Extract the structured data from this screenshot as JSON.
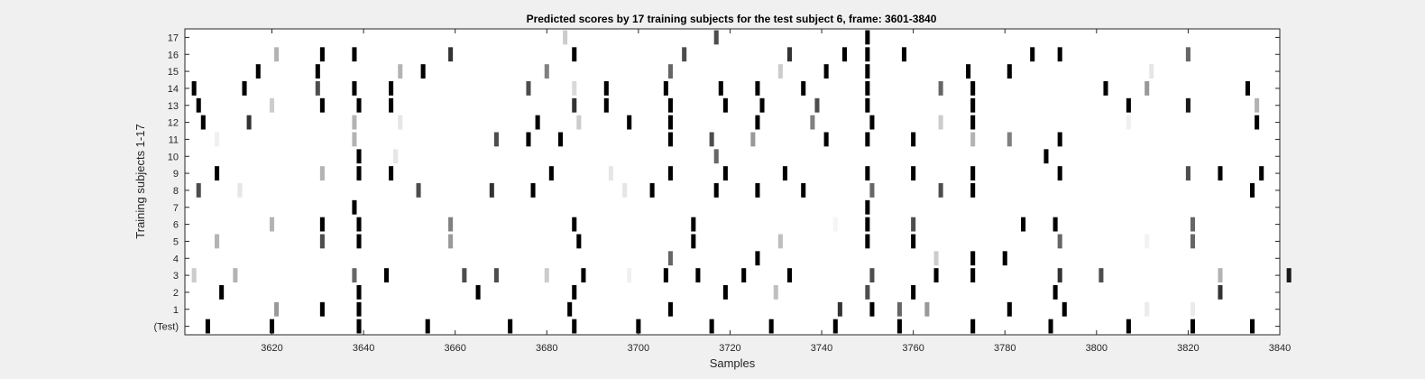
{
  "chart_data": {
    "type": "heatmap",
    "title": "Predicted scores by 17 training subjects for the test subject 6, frame: 3601-3840",
    "xlabel": "Samples",
    "ylabel": "Training subjects 1-17",
    "xlim": [
      3601,
      3840
    ],
    "x_ticks": [
      3620,
      3640,
      3660,
      3680,
      3700,
      3720,
      3740,
      3760,
      3780,
      3800,
      3820,
      3840
    ],
    "rows": [
      "(Test)",
      "1",
      "2",
      "3",
      "4",
      "5",
      "6",
      "7",
      "8",
      "9",
      "10",
      "11",
      "12",
      "13",
      "14",
      "15",
      "16",
      "17"
    ],
    "value_scale": "white = 0, black = 1",
    "series": [
      {
        "row": "(Test)",
        "points": [
          [
            3606,
            1
          ],
          [
            3620,
            1
          ],
          [
            3639,
            1
          ],
          [
            3654,
            1
          ],
          [
            3672,
            1
          ],
          [
            3686,
            1
          ],
          [
            3700,
            1
          ],
          [
            3716,
            1
          ],
          [
            3729,
            1
          ],
          [
            3743,
            1
          ],
          [
            3757,
            1
          ],
          [
            3773,
            1
          ],
          [
            3790,
            1
          ],
          [
            3807,
            1
          ],
          [
            3821,
            1
          ],
          [
            3834,
            1
          ]
        ]
      },
      {
        "row": "1",
        "points": [
          [
            3621,
            0.4
          ],
          [
            3631,
            1
          ],
          [
            3639,
            1
          ],
          [
            3685,
            1
          ],
          [
            3707,
            1
          ],
          [
            3744,
            0.8
          ],
          [
            3751,
            1
          ],
          [
            3757,
            0.6
          ],
          [
            3763,
            0.4
          ],
          [
            3781,
            1
          ],
          [
            3793,
            1
          ],
          [
            3811,
            0.08
          ],
          [
            3821,
            0.08
          ]
        ]
      },
      {
        "row": "2",
        "points": [
          [
            3609,
            1
          ],
          [
            3639,
            1
          ],
          [
            3665,
            1
          ],
          [
            3686,
            1
          ],
          [
            3719,
            1
          ],
          [
            3730,
            0.25
          ],
          [
            3750,
            0.7
          ],
          [
            3760,
            1
          ],
          [
            3791,
            1
          ],
          [
            3827,
            0.8
          ]
        ]
      },
      {
        "row": "3",
        "points": [
          [
            3603,
            0.2
          ],
          [
            3612,
            0.3
          ],
          [
            3638,
            0.6
          ],
          [
            3645,
            1
          ],
          [
            3662,
            0.7
          ],
          [
            3669,
            0.7
          ],
          [
            3680,
            0.2
          ],
          [
            3688,
            1
          ],
          [
            3698,
            0.06
          ],
          [
            3706,
            1
          ],
          [
            3713,
            1
          ],
          [
            3723,
            1
          ],
          [
            3733,
            1
          ],
          [
            3751,
            0.7
          ],
          [
            3765,
            1
          ],
          [
            3773,
            1
          ],
          [
            3792,
            0.8
          ],
          [
            3801,
            0.7
          ],
          [
            3827,
            0.3
          ],
          [
            3842,
            0.9
          ]
        ]
      },
      {
        "row": "4",
        "points": [
          [
            3707,
            0.6
          ],
          [
            3726,
            1
          ],
          [
            3765,
            0.2
          ],
          [
            3773,
            1
          ],
          [
            3780,
            1
          ]
        ]
      },
      {
        "row": "5",
        "points": [
          [
            3608,
            0.3
          ],
          [
            3631,
            0.7
          ],
          [
            3639,
            1
          ],
          [
            3659,
            0.4
          ],
          [
            3687,
            1
          ],
          [
            3712,
            1
          ],
          [
            3731,
            0.25
          ],
          [
            3750,
            1
          ],
          [
            3760,
            1
          ],
          [
            3792,
            0.6
          ],
          [
            3811,
            0.05
          ],
          [
            3821,
            0.6
          ]
        ]
      },
      {
        "row": "6",
        "points": [
          [
            3620,
            0.3
          ],
          [
            3631,
            1
          ],
          [
            3639,
            1
          ],
          [
            3659,
            0.5
          ],
          [
            3686,
            1
          ],
          [
            3712,
            1
          ],
          [
            3743,
            0.04
          ],
          [
            3750,
            1
          ],
          [
            3760,
            0.7
          ],
          [
            3784,
            1
          ],
          [
            3791,
            1
          ],
          [
            3821,
            0.6
          ]
        ]
      },
      {
        "row": "7",
        "points": [
          [
            3638,
            1
          ],
          [
            3750,
            1
          ]
        ]
      },
      {
        "row": "8",
        "points": [
          [
            3604,
            0.7
          ],
          [
            3613,
            0.1
          ],
          [
            3652,
            0.7
          ],
          [
            3668,
            0.8
          ],
          [
            3677,
            1
          ],
          [
            3697,
            0.1
          ],
          [
            3703,
            1
          ],
          [
            3717,
            1
          ],
          [
            3726,
            1
          ],
          [
            3736,
            1
          ],
          [
            3751,
            0.6
          ],
          [
            3766,
            0.7
          ],
          [
            3773,
            1
          ],
          [
            3834,
            1
          ]
        ]
      },
      {
        "row": "9",
        "points": [
          [
            3608,
            1
          ],
          [
            3631,
            0.3
          ],
          [
            3639,
            1
          ],
          [
            3646,
            1
          ],
          [
            3681,
            1
          ],
          [
            3694,
            0.1
          ],
          [
            3707,
            1
          ],
          [
            3719,
            1
          ],
          [
            3732,
            1
          ],
          [
            3750,
            1
          ],
          [
            3760,
            1
          ],
          [
            3773,
            1
          ],
          [
            3792,
            1
          ],
          [
            3820,
            0.7
          ],
          [
            3827,
            1
          ],
          [
            3836,
            1
          ]
        ]
      },
      {
        "row": "10",
        "points": [
          [
            3639,
            1
          ],
          [
            3647,
            0.1
          ],
          [
            3717,
            0.6
          ],
          [
            3789,
            1
          ]
        ]
      },
      {
        "row": "11",
        "points": [
          [
            3608,
            0.06
          ],
          [
            3638,
            0.3
          ],
          [
            3669,
            0.7
          ],
          [
            3676,
            1
          ],
          [
            3683,
            1
          ],
          [
            3707,
            1
          ],
          [
            3716,
            0.7
          ],
          [
            3725,
            0.4
          ],
          [
            3741,
            1
          ],
          [
            3750,
            1
          ],
          [
            3760,
            1
          ],
          [
            3773,
            0.3
          ],
          [
            3781,
            0.5
          ],
          [
            3792,
            1
          ]
        ]
      },
      {
        "row": "12",
        "points": [
          [
            3605,
            1
          ],
          [
            3615,
            0.8
          ],
          [
            3638,
            0.3
          ],
          [
            3648,
            0.1
          ],
          [
            3678,
            1
          ],
          [
            3687,
            0.2
          ],
          [
            3698,
            1
          ],
          [
            3707,
            1
          ],
          [
            3726,
            1
          ],
          [
            3738,
            0.5
          ],
          [
            3751,
            1
          ],
          [
            3766,
            0.2
          ],
          [
            3773,
            1
          ],
          [
            3807,
            0.06
          ],
          [
            3835,
            1
          ]
        ]
      },
      {
        "row": "13",
        "points": [
          [
            3604,
            1
          ],
          [
            3620,
            0.2
          ],
          [
            3631,
            1
          ],
          [
            3639,
            1
          ],
          [
            3646,
            1
          ],
          [
            3686,
            0.8
          ],
          [
            3693,
            1
          ],
          [
            3707,
            1
          ],
          [
            3719,
            1
          ],
          [
            3727,
            1
          ],
          [
            3739,
            0.7
          ],
          [
            3750,
            1
          ],
          [
            3773,
            1
          ],
          [
            3807,
            1
          ],
          [
            3820,
            0.9
          ],
          [
            3835,
            0.3
          ]
        ]
      },
      {
        "row": "14",
        "points": [
          [
            3603,
            1
          ],
          [
            3614,
            1
          ],
          [
            3630,
            0.7
          ],
          [
            3638,
            1
          ],
          [
            3646,
            1
          ],
          [
            3676,
            0.7
          ],
          [
            3686,
            0.15
          ],
          [
            3693,
            1
          ],
          [
            3706,
            1
          ],
          [
            3718,
            1
          ],
          [
            3726,
            1
          ],
          [
            3736,
            1
          ],
          [
            3750,
            1
          ],
          [
            3766,
            0.6
          ],
          [
            3773,
            1
          ],
          [
            3802,
            1
          ],
          [
            3811,
            0.4
          ],
          [
            3833,
            1
          ]
        ]
      },
      {
        "row": "15",
        "points": [
          [
            3617,
            1
          ],
          [
            3630,
            1
          ],
          [
            3648,
            0.3
          ],
          [
            3653,
            1
          ],
          [
            3680,
            0.5
          ],
          [
            3707,
            0.6
          ],
          [
            3731,
            0.2
          ],
          [
            3741,
            1
          ],
          [
            3750,
            1
          ],
          [
            3772,
            1
          ],
          [
            3781,
            1
          ],
          [
            3812,
            0.1
          ]
        ]
      },
      {
        "row": "16",
        "points": [
          [
            3621,
            0.3
          ],
          [
            3631,
            1
          ],
          [
            3638,
            1
          ],
          [
            3659,
            0.8
          ],
          [
            3686,
            1
          ],
          [
            3710,
            0.7
          ],
          [
            3733,
            0.8
          ],
          [
            3745,
            1
          ],
          [
            3750,
            1
          ],
          [
            3758,
            1
          ],
          [
            3786,
            1
          ],
          [
            3792,
            1
          ],
          [
            3820,
            0.6
          ]
        ]
      },
      {
        "row": "17",
        "points": [
          [
            3684,
            0.2
          ],
          [
            3717,
            0.7
          ],
          [
            3750,
            1
          ]
        ]
      }
    ]
  }
}
